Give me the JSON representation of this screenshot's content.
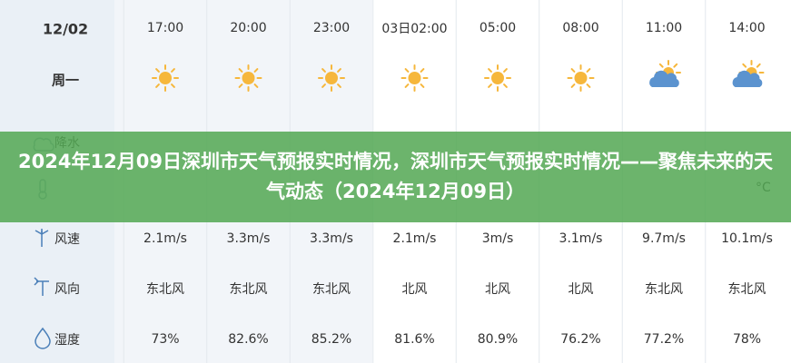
{
  "banner": {
    "title": "2024年12月09日深圳市天气预报实时情况，深圳市天气预报实时情况——聚焦未来的天气动态（2024年12月09日）"
  },
  "table": {
    "date": "12/02",
    "weekday": "周一",
    "times": [
      "17:00",
      "20:00",
      "23:00",
      "03日02:00",
      "05:00",
      "08:00",
      "11:00",
      "14:00"
    ],
    "weather": [
      "sunny",
      "sunny",
      "sunny",
      "sunny",
      "sunny",
      "sunny",
      "cloudy",
      "cloudy"
    ],
    "row_labels": {
      "precip": "降水",
      "wind_speed": "风速",
      "wind_dir": "风向",
      "humidity": "湿度"
    },
    "temp_unit": "°C",
    "wind_speed": [
      "2.1m/s",
      "3.3m/s",
      "3.3m/s",
      "2.1m/s",
      "3m/s",
      "3.1m/s",
      "9.7m/s",
      "10.1m/s"
    ],
    "wind_dir": [
      "东北风",
      "东北风",
      "东北风",
      "北风",
      "北风",
      "北风",
      "东北风",
      "东北风"
    ],
    "humidity": [
      "73%",
      "82.6%",
      "85.2%",
      "81.6%",
      "80.9%",
      "76.2%",
      "77.2%",
      "78%"
    ]
  }
}
